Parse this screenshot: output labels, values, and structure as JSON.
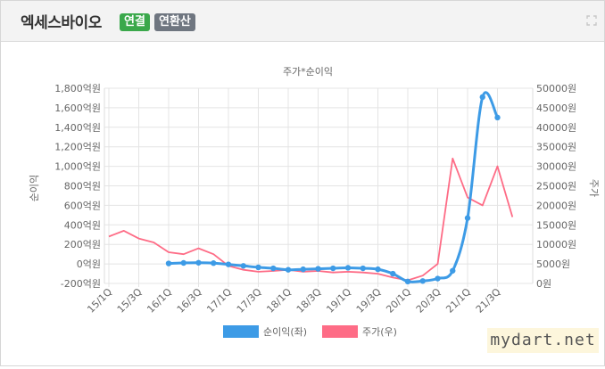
{
  "header": {
    "company": "엑세스바이오",
    "badge_consolidated": "연결",
    "badge_annualized": "연환산"
  },
  "colors": {
    "net_income": "#3d9be6",
    "price": "#fe6c86"
  },
  "watermark": "mydart.net",
  "chart_data": {
    "type": "line",
    "title": "주가*순이익",
    "y_left": {
      "label": "순이익",
      "ylim": [
        -200,
        1800
      ],
      "ticks": [
        "-200억원",
        "0억원",
        "200억원",
        "400억원",
        "600억원",
        "800억원",
        "1,000억원",
        "1,200억원",
        "1,400억원",
        "1,600억원",
        "1,800억원"
      ]
    },
    "y_right": {
      "label": "주가",
      "ylim": [
        0,
        50000
      ],
      "ticks": [
        "0원",
        "5000원",
        "10000원",
        "15000원",
        "20000원",
        "25000원",
        "30000원",
        "35000원",
        "40000원",
        "45000원",
        "50000원"
      ]
    },
    "x_ticks": [
      "15/1Q",
      "15/3Q",
      "16/1Q",
      "16/3Q",
      "17/1Q",
      "17/3Q",
      "18/1Q",
      "18/3Q",
      "19/1Q",
      "19/3Q",
      "20/1Q",
      "20/3Q",
      "21/1Q",
      "21/3Q"
    ],
    "series": [
      {
        "name": "순이익(좌)",
        "axis": "left",
        "x": [
          "16/1Q",
          "16/2Q",
          "16/3Q",
          "16/4Q",
          "17/1Q",
          "17/2Q",
          "17/3Q",
          "17/4Q",
          "18/1Q",
          "18/2Q",
          "18/3Q",
          "18/4Q",
          "19/1Q",
          "19/2Q",
          "19/3Q",
          "19/4Q",
          "20/1Q",
          "20/2Q",
          "20/3Q",
          "20/4Q",
          "21/1Q",
          "21/2Q",
          "21/3Q"
        ],
        "values": [
          5,
          10,
          12,
          8,
          -5,
          -20,
          -35,
          -45,
          -60,
          -55,
          -50,
          -45,
          -40,
          -45,
          -55,
          -100,
          -180,
          -175,
          -150,
          -70,
          470,
          1710,
          1500
        ]
      },
      {
        "name": "주가(우)",
        "axis": "right",
        "x": [
          "15/1Q",
          "15/2Q",
          "15/3Q",
          "15/4Q",
          "16/1Q",
          "16/2Q",
          "16/3Q",
          "16/4Q",
          "17/1Q",
          "17/2Q",
          "17/3Q",
          "17/4Q",
          "18/1Q",
          "18/2Q",
          "18/3Q",
          "18/4Q",
          "19/1Q",
          "19/2Q",
          "19/3Q",
          "19/4Q",
          "20/1Q",
          "20/2Q",
          "20/3Q",
          "20/4Q",
          "21/1Q",
          "21/2Q",
          "21/3Q",
          "21/4Q"
        ],
        "values": [
          12000,
          13500,
          11500,
          10500,
          8000,
          7500,
          9000,
          7500,
          4500,
          3500,
          3000,
          3200,
          3500,
          3000,
          3200,
          2800,
          3000,
          2800,
          2500,
          1500,
          800,
          2000,
          5000,
          32000,
          22000,
          20000,
          30000,
          17000
        ]
      }
    ],
    "legend": "bottom"
  }
}
